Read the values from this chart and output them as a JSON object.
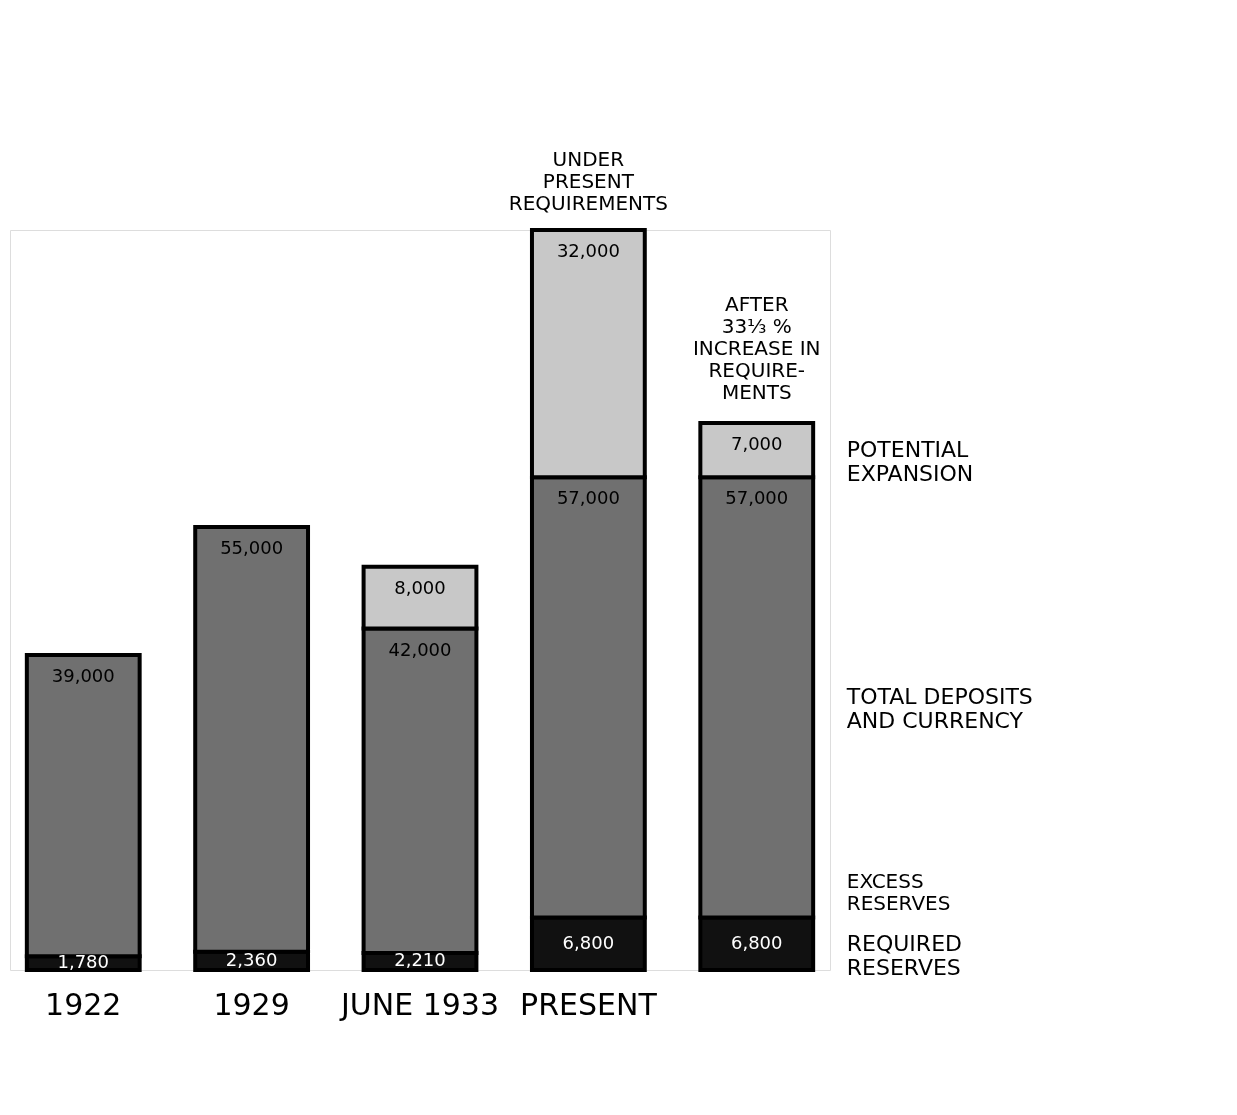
{
  "chart_data": {
    "type": "bar",
    "stacked": true,
    "legend": false,
    "categories": [
      "1922",
      "1929",
      "JUNE 1933",
      "PRESENT",
      null
    ],
    "series": [
      {
        "name": "REQUIRED RESERVES",
        "color": "#111111",
        "values": [
          1780,
          2360,
          2210,
          6800,
          6800
        ],
        "value_labels": [
          "1,780",
          "2,360",
          "2,210",
          "6,800",
          "6,800"
        ]
      },
      {
        "name": "TOTAL DEPOSITS AND CURRENCY",
        "color": "#707070",
        "values": [
          39000,
          55000,
          42000,
          57000,
          57000
        ],
        "value_labels": [
          "39,000",
          "55,000",
          "42,000",
          "57,000",
          "57,000"
        ]
      },
      {
        "name": "POTENTIAL EXPANSION",
        "color": "#c8c8c8",
        "values": [
          null,
          null,
          8000,
          32000,
          7000
        ],
        "value_labels": [
          null,
          null,
          "8,000",
          "32,000",
          "7,000"
        ]
      }
    ],
    "annotations": [
      "UNDER\nPRESENT\nREQUIREMENTS",
      "AFTER\n33⅓ %\nINCREASE IN\nREQUIRE-\nMENTS",
      "EXCESS\nRESERVES"
    ]
  }
}
